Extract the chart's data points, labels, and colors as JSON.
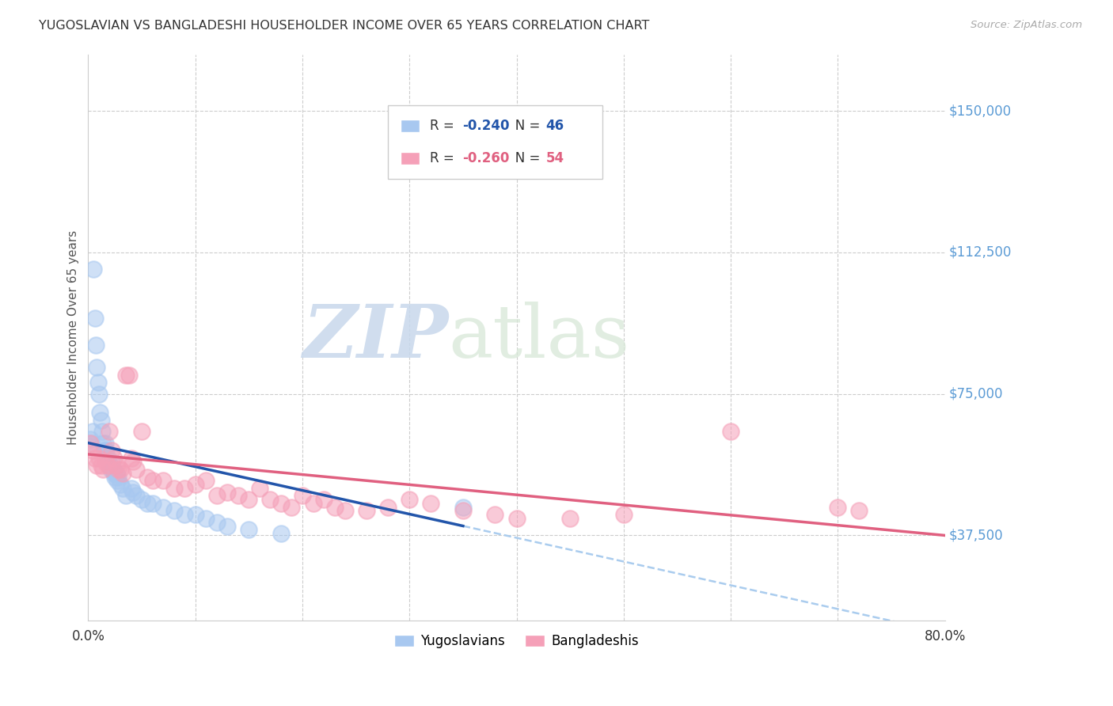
{
  "title": "YUGOSLAVIAN VS BANGLADESHI HOUSEHOLDER INCOME OVER 65 YEARS CORRELATION CHART",
  "source": "Source: ZipAtlas.com",
  "ylabel": "Householder Income Over 65 years",
  "xlim": [
    0.0,
    0.8
  ],
  "ylim": [
    15000,
    165000
  ],
  "yug_R": -0.24,
  "yug_N": 46,
  "ban_R": -0.26,
  "ban_N": 54,
  "blue_color": "#A8C8F0",
  "pink_color": "#F5A0B8",
  "blue_line_color": "#2255AA",
  "pink_line_color": "#E06080",
  "dashed_line_color": "#AACCEE",
  "grid_color": "#CCCCCC",
  "title_color": "#333333",
  "source_color": "#AAAAAA",
  "axis_label_color": "#555555",
  "ytick_label_color": "#5B9BD5",
  "yug_x": [
    0.002,
    0.003,
    0.004,
    0.005,
    0.006,
    0.007,
    0.008,
    0.009,
    0.01,
    0.011,
    0.012,
    0.013,
    0.014,
    0.015,
    0.016,
    0.017,
    0.018,
    0.019,
    0.02,
    0.021,
    0.022,
    0.023,
    0.024,
    0.025,
    0.026,
    0.027,
    0.028,
    0.03,
    0.032,
    0.035,
    0.04,
    0.042,
    0.045,
    0.05,
    0.055,
    0.06,
    0.07,
    0.08,
    0.09,
    0.1,
    0.11,
    0.12,
    0.13,
    0.15,
    0.18,
    0.35
  ],
  "yug_y": [
    63000,
    62000,
    65000,
    108000,
    95000,
    88000,
    82000,
    78000,
    75000,
    70000,
    68000,
    65000,
    62000,
    60000,
    62000,
    60000,
    58000,
    57000,
    56000,
    55000,
    57000,
    55000,
    54000,
    53000,
    54000,
    52000,
    53000,
    51000,
    50000,
    48000,
    50000,
    49000,
    48000,
    47000,
    46000,
    46000,
    45000,
    44000,
    43000,
    43000,
    42000,
    41000,
    40000,
    39000,
    38000,
    45000
  ],
  "ban_x": [
    0.002,
    0.004,
    0.006,
    0.008,
    0.01,
    0.012,
    0.014,
    0.016,
    0.018,
    0.02,
    0.022,
    0.024,
    0.026,
    0.028,
    0.03,
    0.032,
    0.035,
    0.038,
    0.04,
    0.042,
    0.045,
    0.05,
    0.055,
    0.06,
    0.07,
    0.08,
    0.09,
    0.1,
    0.11,
    0.12,
    0.13,
    0.14,
    0.15,
    0.16,
    0.17,
    0.18,
    0.19,
    0.2,
    0.21,
    0.22,
    0.23,
    0.24,
    0.26,
    0.28,
    0.3,
    0.32,
    0.35,
    0.38,
    0.4,
    0.45,
    0.5,
    0.6,
    0.7,
    0.72
  ],
  "ban_y": [
    62000,
    60000,
    58000,
    56000,
    58000,
    56000,
    55000,
    57000,
    56000,
    65000,
    60000,
    58000,
    56000,
    55000,
    55000,
    54000,
    80000,
    80000,
    58000,
    57000,
    55000,
    65000,
    53000,
    52000,
    52000,
    50000,
    50000,
    51000,
    52000,
    48000,
    49000,
    48000,
    47000,
    50000,
    47000,
    46000,
    45000,
    48000,
    46000,
    47000,
    45000,
    44000,
    44000,
    45000,
    47000,
    46000,
    44000,
    43000,
    42000,
    42000,
    43000,
    65000,
    45000,
    44000
  ],
  "blue_line_x0": 0.0,
  "blue_line_y0": 62000,
  "blue_line_x1": 0.35,
  "blue_line_y1": 40000,
  "pink_line_x0": 0.0,
  "pink_line_y0": 59000,
  "pink_line_x1": 0.8,
  "pink_line_y1": 37500,
  "dash_line_x0": 0.35,
  "dash_line_x1": 0.8,
  "ytick_values": [
    37500,
    75000,
    112500,
    150000
  ],
  "ytick_labels": [
    "$37,500",
    "$75,000",
    "$112,500",
    "$150,000"
  ],
  "watermark_zip": "ZIP",
  "watermark_atlas": "atlas"
}
